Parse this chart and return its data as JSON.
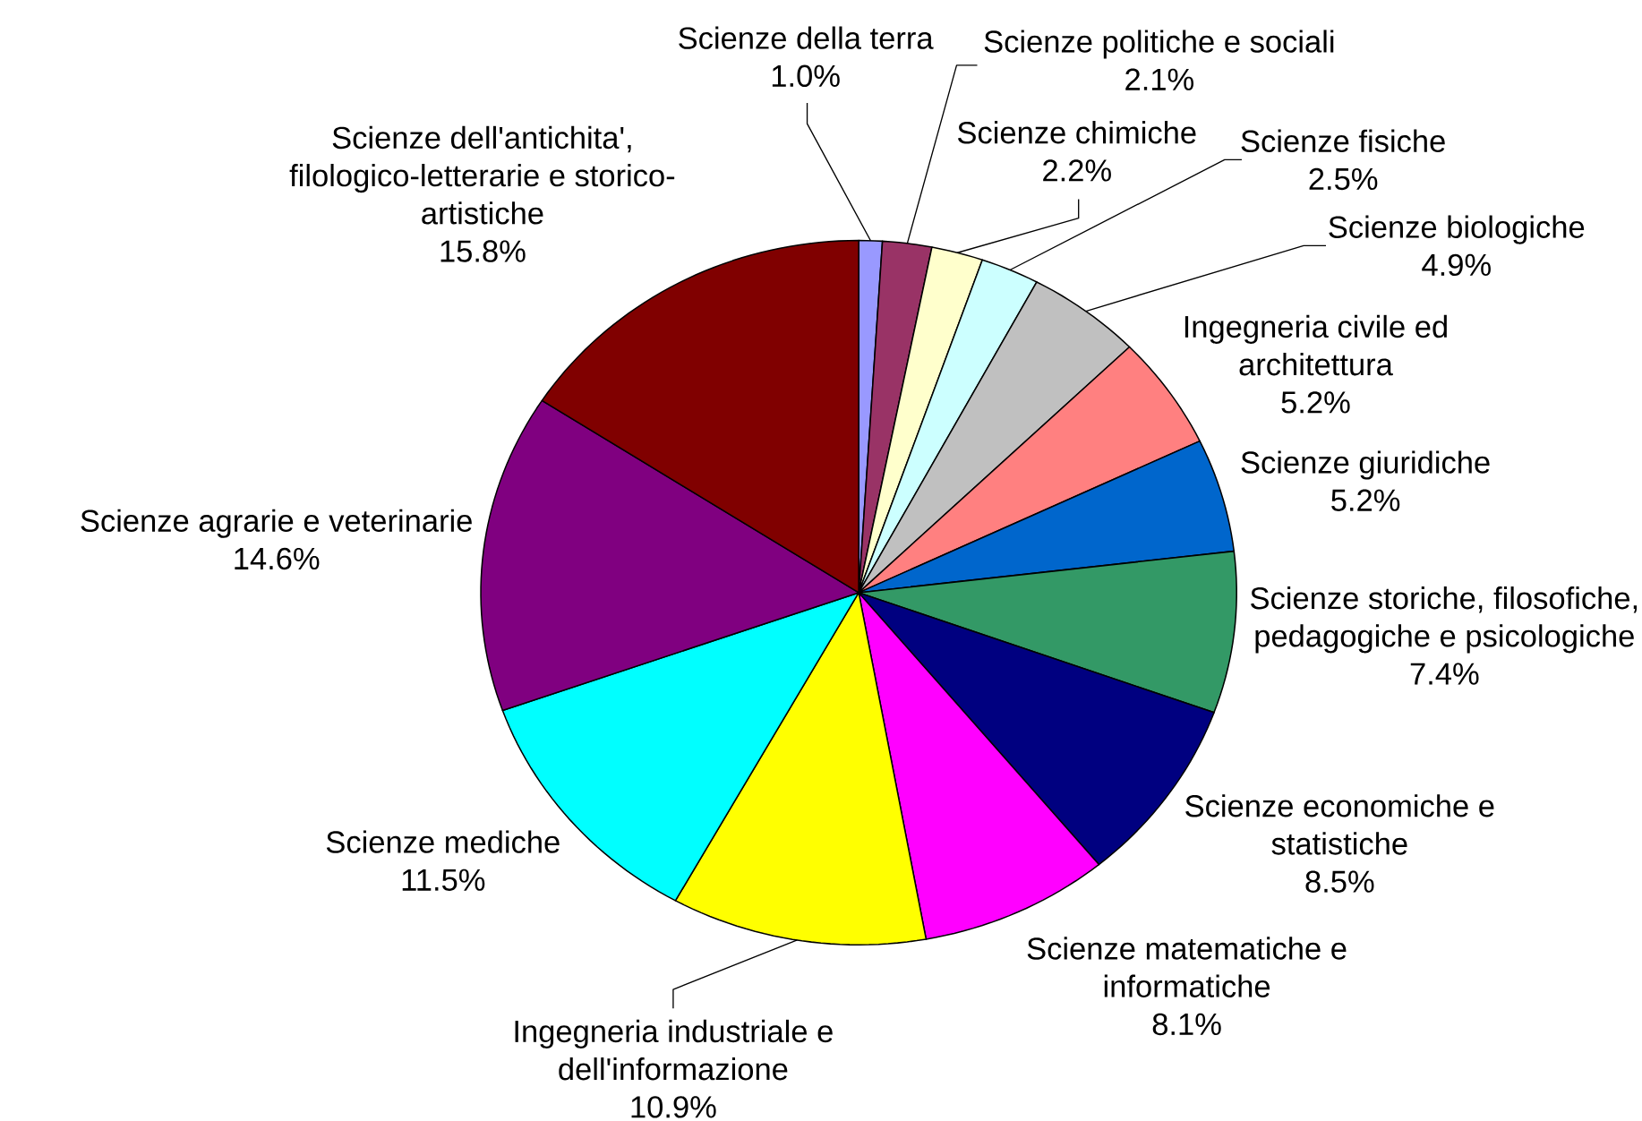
{
  "chart_data": {
    "type": "pie",
    "categories": [
      "Scienze della terra",
      "Scienze politiche e sociali",
      "Scienze chimiche",
      "Scienze fisiche",
      "Scienze biologiche",
      "Ingegneria civile ed architettura",
      "Scienze giuridiche",
      "Scienze storiche, filosofiche, pedagogiche e psicologiche",
      "Scienze economiche e statistiche",
      "Scienze matematiche e informatiche",
      "Ingegneria industriale e dell'informazione",
      "Scienze mediche",
      "Scienze agrarie e veterinarie",
      "Scienze dell'antichita', filologico-letterarie e storico-artistiche"
    ],
    "values": [
      1.0,
      2.1,
      2.2,
      2.5,
      4.9,
      5.2,
      5.2,
      7.4,
      8.5,
      8.1,
      10.9,
      11.5,
      14.6,
      15.8
    ],
    "value_labels": [
      "1.0%",
      "2.1%",
      "2.2%",
      "2.5%",
      "4.9%",
      "5.2%",
      "5.2%",
      "7.4%",
      "8.5%",
      "8.1%",
      "10.9%",
      "11.5%",
      "14.6%",
      "15.8%"
    ],
    "colors": [
      "#9999ff",
      "#993366",
      "#ffffcc",
      "#ccffff",
      "#c0c0c0",
      "#ff8080",
      "#0066cc",
      "#339966",
      "#000080",
      "#ff00ff",
      "#ffff00",
      "#00ffff",
      "#800080",
      "#800000"
    ]
  }
}
